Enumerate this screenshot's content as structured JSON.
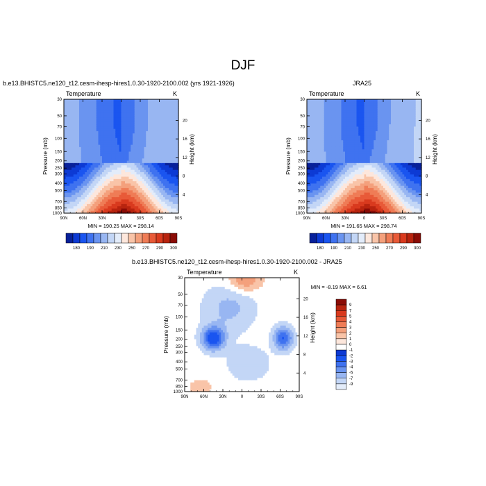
{
  "title": "DJF",
  "colors": {
    "cold": [
      "#08219a",
      "#0d3ad4",
      "#1a55f0",
      "#3f72f0",
      "#6a94f0",
      "#98b6f2",
      "#c3d6f6",
      "#e3ecfa"
    ],
    "warm": [
      "#fde7dc",
      "#f9c4a8",
      "#f4a07c",
      "#ef7c56",
      "#e85a38",
      "#d93a1e",
      "#b8240f",
      "#8a0c06"
    ],
    "neutral": "#ffffff"
  },
  "chart_data": [
    {
      "type": "heatmap",
      "title": "b.e13.BHISTC5.ne120_t12.cesm-ihesp-hires1.0.30-1920-2100.002 (yrs 1921-1926)",
      "left_string": "Temperature",
      "right_string": "K",
      "xlabel": "",
      "ylabel": "Pressure (mb)",
      "ylabel_right": "Height (km)",
      "x_ticks": [
        "90N",
        "60N",
        "30N",
        "0",
        "30S",
        "60S",
        "90S"
      ],
      "y_ticks": [
        "30",
        "50",
        "70",
        "100",
        "150",
        "200",
        "250",
        "300",
        "400",
        "500",
        "700",
        "850",
        "1000"
      ],
      "y_ticks_right": [
        "20",
        "16",
        "12",
        "8",
        "4"
      ],
      "ylim": [
        1000,
        30
      ],
      "min_max_text": "MIN = 190.25   MAX = 298.14",
      "colorbar_labels": [
        "180",
        "190",
        "210",
        "230",
        "250",
        "270",
        "290",
        "300"
      ],
      "z_min": 190.25,
      "z_max": 298.14
    },
    {
      "type": "heatmap",
      "title": "JRA25",
      "left_string": "Temperature",
      "right_string": "K",
      "xlabel": "",
      "ylabel": "Pressure (mb)",
      "ylabel_right": "Height (km)",
      "x_ticks": [
        "90N",
        "60N",
        "30N",
        "0",
        "30S",
        "60S",
        "90S"
      ],
      "y_ticks": [
        "30",
        "50",
        "70",
        "100",
        "150",
        "200",
        "250",
        "300",
        "400",
        "500",
        "700",
        "850",
        "1000"
      ],
      "y_ticks_right": [
        "20",
        "16",
        "12",
        "8",
        "4"
      ],
      "ylim": [
        1000,
        30
      ],
      "min_max_text": "MIN = 191.65   MAX = 298.74",
      "colorbar_labels": [
        "180",
        "190",
        "210",
        "230",
        "250",
        "270",
        "290",
        "300"
      ],
      "z_min": 191.65,
      "z_max": 298.74
    },
    {
      "type": "heatmap",
      "title": "b.e13.BHISTC5.ne120_t12.cesm-ihesp-hires1.0.30-1920-2100.002 - JRA25",
      "left_string": "Temperature",
      "right_string": "K",
      "xlabel": "",
      "ylabel": "Pressure (mb)",
      "ylabel_right": "Height (km)",
      "x_ticks": [
        "90N",
        "60N",
        "30N",
        "0",
        "30S",
        "60S",
        "90S"
      ],
      "y_ticks": [
        "30",
        "50",
        "70",
        "100",
        "150",
        "200",
        "250",
        "300",
        "400",
        "500",
        "700",
        "850",
        "1000"
      ],
      "y_ticks_right": [
        "20",
        "16",
        "12",
        "8",
        "4"
      ],
      "ylim": [
        1000,
        30
      ],
      "min_max_text": "MIN =  -8.19  MAX =   6.61",
      "colorbar_labels": [
        "9",
        "7",
        "5",
        "4",
        "3",
        "2",
        "1",
        "0",
        "-1",
        "-2",
        "-3",
        "-4",
        "-5",
        "-7",
        "-9"
      ],
      "z_min": -8.19,
      "z_max": 6.61
    }
  ]
}
